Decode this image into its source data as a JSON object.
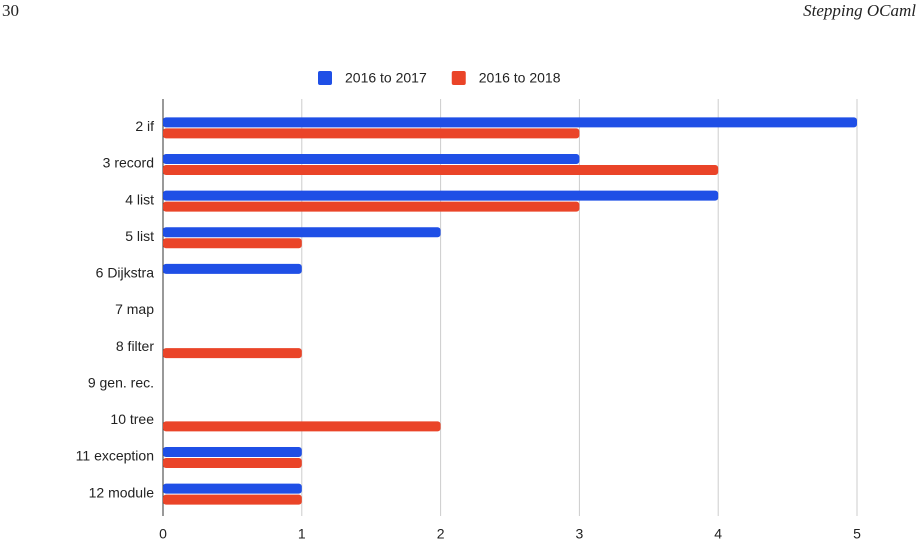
{
  "header": {
    "page_number": "30",
    "running_title": "Stepping OCaml"
  },
  "chart_data": {
    "type": "bar",
    "orientation": "horizontal",
    "categories": [
      "2 if",
      "3 record",
      "4 list",
      "5 list",
      "6 Dijkstra",
      "7 map",
      "8 filter",
      "9 gen. rec.",
      "10 tree",
      "11 exception",
      "12 module"
    ],
    "series": [
      {
        "name": "2016 to 2017",
        "color": "#1f4fe6",
        "values": [
          5,
          3,
          4,
          2,
          1,
          0,
          0,
          0,
          0,
          1,
          1
        ]
      },
      {
        "name": "2016 to 2018",
        "color": "#ea4428",
        "values": [
          3,
          4,
          3,
          1,
          0,
          0,
          1,
          0,
          2,
          1,
          1
        ]
      }
    ],
    "xlim": [
      0,
      5
    ],
    "xticks": [
      0,
      1,
      2,
      3,
      4,
      5
    ],
    "grid": true,
    "legend": "top"
  }
}
